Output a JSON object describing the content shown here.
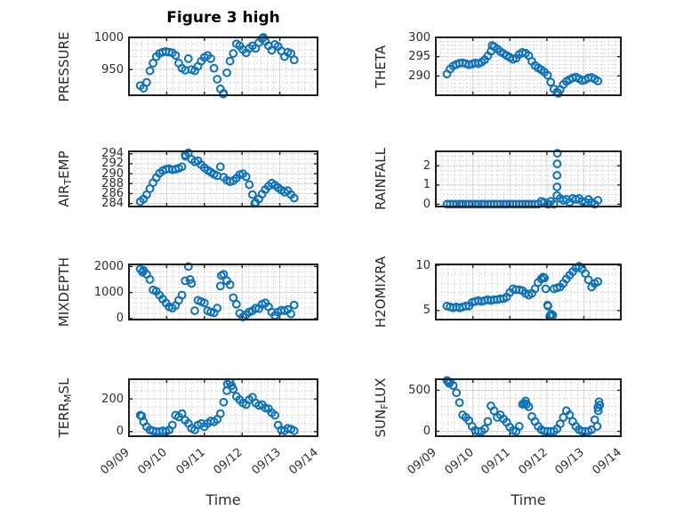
{
  "title": "Figure 3 high",
  "xlabel": "Time",
  "colors": {
    "marker": "#0f72b9",
    "axis": "#1f1f1f",
    "grid_major": "#d9d9d9",
    "grid_minor": "#c9c9c9",
    "label": "#262626",
    "title": "#000000"
  },
  "time_axis": {
    "xlim": [
      0,
      5
    ],
    "tick_values": [
      0,
      1,
      2,
      3,
      4,
      5
    ],
    "tick_labels": [
      "09/09",
      "09/10",
      "09/11",
      "09/12",
      "09/13",
      "09/14"
    ],
    "minor_step": 0.1667
  },
  "chart_data": [
    {
      "type": "scatter",
      "name": "PRESSURE",
      "ylabel_parts": {
        "pre": "PRESSURE",
        "sub": "",
        "post": ""
      },
      "ylim": [
        910,
        1000
      ],
      "yticks": [
        950,
        1000
      ],
      "yminor_step": 10,
      "x0": 0.3,
      "dx": 0.085,
      "y": [
        925,
        921,
        930,
        948,
        960,
        970,
        975,
        977,
        978,
        977,
        976,
        972,
        960,
        952,
        949,
        967,
        950,
        948,
        955,
        963,
        969,
        972,
        967,
        952,
        935,
        920,
        913,
        945,
        963,
        975,
        990,
        987,
        981,
        976,
        983,
        987,
        983,
        992,
        998,
        994,
        987,
        980,
        989,
        986,
        979,
        970,
        977,
        975,
        965
      ],
      "extra_points": [
        [
          2.5,
          912
        ],
        [
          3.56,
          1000
        ]
      ]
    },
    {
      "type": "scatter",
      "name": "THETA",
      "ylabel_parts": {
        "pre": "THETA",
        "sub": "",
        "post": ""
      },
      "ylim": [
        285,
        300
      ],
      "yticks": [
        290,
        295,
        300
      ],
      "yminor_step": 1,
      "x0": 0.3,
      "dx": 0.085,
      "y": [
        290.5,
        291.8,
        292.6,
        293.0,
        293.3,
        293.4,
        293.2,
        292.9,
        293.1,
        293.4,
        293.2,
        293.6,
        294.2,
        295.2,
        296.4,
        297.6,
        297.0,
        296.3,
        295.8,
        295.3,
        294.8,
        294.3,
        294.6,
        295.6,
        296.1,
        295.9,
        295.3,
        293.8,
        292.7,
        292.1,
        291.6,
        291.0,
        290.2,
        288.4,
        286.6,
        285.8,
        286.5,
        287.8,
        288.6,
        289.1,
        289.5,
        289.7,
        289.3,
        288.8,
        289.0,
        289.5,
        289.6,
        289.2,
        288.7
      ],
      "extra_points": [
        [
          1.52,
          297.9
        ],
        [
          3.31,
          285.5
        ]
      ]
    },
    {
      "type": "scatter",
      "name": "AIR_TEMP",
      "ylabel_parts": {
        "pre": "AIR",
        "sub": "T",
        "post": "EMP"
      },
      "ylim": [
        283.4,
        294.5
      ],
      "yticks": [
        284,
        286,
        288,
        290,
        292,
        294
      ],
      "yminor_step": 1,
      "x0": 0.3,
      "dx": 0.085,
      "y": [
        284.4,
        284.9,
        285.8,
        287.0,
        288.2,
        289.2,
        290.1,
        290.6,
        290.9,
        291.0,
        290.8,
        290.9,
        291.1,
        291.4,
        293.8,
        294.2,
        292.9,
        292.4,
        292.6,
        291.8,
        291.2,
        290.7,
        290.3,
        289.9,
        289.6,
        291.4,
        289.3,
        288.7,
        288.4,
        288.6,
        289.1,
        289.8,
        290.0,
        289.4,
        287.8,
        285.8,
        284.2,
        284.9,
        285.9,
        286.8,
        287.5,
        288.1,
        287.7,
        287.2,
        286.7,
        286.3,
        286.6,
        285.8,
        285.1
      ],
      "extra_points": [
        [
          3.33,
          284.0
        ],
        [
          1.5,
          293.5
        ]
      ]
    },
    {
      "type": "scatter",
      "name": "RAINFALL",
      "ylabel_parts": {
        "pre": "RAINFALL",
        "sub": "",
        "post": ""
      },
      "ylim": [
        -0.12,
        2.75
      ],
      "yticks": [
        0,
        1,
        2
      ],
      "yminor_step": 0.25,
      "x0": 0.3,
      "dx": 0.085,
      "y": [
        0,
        0,
        0,
        0,
        0,
        0,
        0,
        0,
        0,
        0,
        0,
        0,
        0,
        0,
        0,
        0,
        0,
        0,
        0,
        0,
        0,
        0,
        0,
        0,
        0,
        0,
        0,
        0,
        0,
        0,
        0.15,
        0.1,
        0,
        0.15,
        0,
        0.45,
        0.3,
        0.2,
        0.25,
        0.1,
        0.3,
        0.25,
        0.3,
        0.15,
        0.1,
        0.25,
        0.1,
        0,
        0.2
      ],
      "extra_points": [
        [
          3.275,
          0.9
        ],
        [
          3.275,
          1.5
        ],
        [
          3.28,
          2.1
        ],
        [
          3.285,
          2.65
        ],
        [
          0.7,
          0
        ],
        [
          1.3,
          0
        ],
        [
          1.9,
          0
        ],
        [
          2.5,
          0
        ],
        [
          3.05,
          0
        ]
      ]
    },
    {
      "type": "scatter",
      "name": "MIXDEPTH",
      "ylabel_parts": {
        "pre": "MIXDEPTH",
        "sub": "",
        "post": ""
      },
      "ylim": [
        -40,
        2080
      ],
      "yticks": [
        0,
        1000,
        2000
      ],
      "yminor_step": 200,
      "x0": 0.3,
      "dx": 0.085,
      "y": [
        1900,
        1850,
        1700,
        1500,
        1100,
        1050,
        900,
        750,
        600,
        450,
        400,
        500,
        700,
        900,
        1450,
        2000,
        1350,
        300,
        700,
        650,
        600,
        300,
        250,
        220,
        400,
        1250,
        1700,
        1450,
        1300,
        800,
        550,
        200,
        60,
        150,
        250,
        300,
        400,
        380,
        550,
        600,
        450,
        250,
        120,
        250,
        320,
        300,
        350,
        180,
        520
      ],
      "extra_points": [
        [
          0.36,
          1780
        ],
        [
          1.62,
          1500
        ],
        [
          2.45,
          1650
        ]
      ]
    },
    {
      "type": "scatter",
      "name": "H2OMIXRA",
      "ylabel_parts": {
        "pre": "H2OMIXRA",
        "sub": "",
        "post": ""
      },
      "ylim": [
        4.0,
        10.1
      ],
      "yticks": [
        5,
        10
      ],
      "yminor_step": 1,
      "x0": 0.3,
      "dx": 0.085,
      "y": [
        5.5,
        5.4,
        5.3,
        5.4,
        5.3,
        5.4,
        5.5,
        5.5,
        5.9,
        6.0,
        6.1,
        6.0,
        6.1,
        6.2,
        6.1,
        6.2,
        6.2,
        6.3,
        6.3,
        6.5,
        7.0,
        7.4,
        7.3,
        7.3,
        7.2,
        6.9,
        6.7,
        6.9,
        7.4,
        8.1,
        8.5,
        8.6,
        5.6,
        4.5,
        7.4,
        7.5,
        7.6,
        8.0,
        8.5,
        8.9,
        9.3,
        9.7,
        9.9,
        9.6,
        9.1,
        8.4,
        7.6,
        8.0,
        8.2
      ],
      "extra_points": [
        [
          2.97,
          7.4
        ],
        [
          3.03,
          5.5
        ],
        [
          3.08,
          4.4
        ],
        [
          3.16,
          4.5
        ],
        [
          3.12,
          4.6
        ],
        [
          2.9,
          8.7
        ]
      ]
    },
    {
      "type": "scatter",
      "name": "TERR_MSL",
      "ylabel_parts": {
        "pre": "TERR",
        "sub": "M",
        "post": "SL"
      },
      "ylim": [
        -28,
        320
      ],
      "yticks": [
        0,
        200
      ],
      "yminor_step": 50,
      "x0": 0.3,
      "dx": 0.085,
      "y": [
        100,
        60,
        30,
        10,
        5,
        0,
        0,
        5,
        0,
        10,
        40,
        100,
        90,
        110,
        70,
        50,
        20,
        10,
        40,
        50,
        30,
        50,
        65,
        60,
        75,
        110,
        180,
        250,
        300,
        260,
        215,
        195,
        175,
        165,
        195,
        210,
        175,
        160,
        165,
        145,
        140,
        115,
        100,
        40,
        10,
        5,
        20,
        15,
        5
      ],
      "extra_points": [
        [
          2.61,
          290
        ],
        [
          2.72,
          280
        ],
        [
          0.34,
          95
        ]
      ]
    },
    {
      "type": "scatter",
      "name": "SUN_FLUX",
      "ylabel_parts": {
        "pre": "SUN",
        "sub": "F",
        "post": "LUX"
      },
      "ylim": [
        -60,
        635
      ],
      "yticks": [
        0,
        500
      ],
      "yminor_step": 100,
      "x0": 0.3,
      "dx": 0.085,
      "y": [
        620,
        600,
        560,
        470,
        350,
        200,
        170,
        130,
        60,
        10,
        0,
        0,
        30,
        120,
        310,
        250,
        170,
        200,
        150,
        110,
        50,
        10,
        0,
        60,
        330,
        370,
        300,
        180,
        120,
        60,
        20,
        0,
        0,
        0,
        0,
        30,
        90,
        170,
        250,
        200,
        120,
        60,
        20,
        0,
        0,
        0,
        20,
        140,
        290
      ],
      "extra_points": [
        [
          0.33,
          610
        ],
        [
          0.36,
          585
        ],
        [
          2.39,
          340
        ],
        [
          2.45,
          330
        ],
        [
          4.36,
          60
        ],
        [
          4.39,
          250
        ],
        [
          4.41,
          360
        ],
        [
          4.43,
          320
        ]
      ]
    }
  ]
}
